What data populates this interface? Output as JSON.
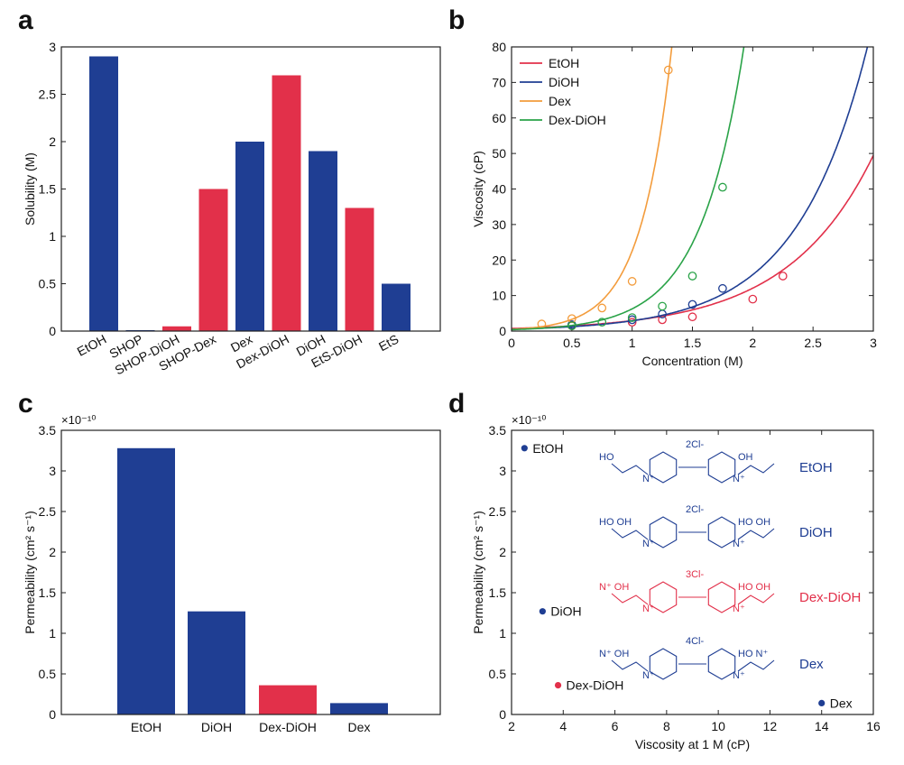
{
  "colors": {
    "blue": "#1f3e93",
    "red": "#e2304a",
    "orange": "#f39c3c",
    "green": "#2aa348",
    "axis": "#222222"
  },
  "panels": {
    "a": {
      "letter": "a"
    },
    "b": {
      "letter": "b"
    },
    "c": {
      "letter": "c"
    },
    "d": {
      "letter": "d"
    }
  },
  "chart_data": [
    {
      "id": "a",
      "type": "bar",
      "title": "",
      "xlabel": "",
      "ylabel": "Solubility (M)",
      "ylim": [
        0,
        3
      ],
      "yticks": [
        0,
        0.5,
        1,
        1.5,
        2,
        2.5,
        3
      ],
      "ytick_labels": [
        "0",
        "0.5",
        "1",
        "1.5",
        "2",
        "2.5",
        "3"
      ],
      "categories": [
        "EtOH",
        "SHOP",
        "SHOP-DiOH",
        "SHOP-Dex",
        "Dex",
        "Dex-DiOH",
        "DiOH",
        "EtS-DiOH",
        "EtS"
      ],
      "values": [
        2.9,
        0.01,
        0.05,
        1.5,
        2.0,
        2.7,
        1.9,
        1.3,
        0.5
      ],
      "bar_colors": [
        "blue",
        "blue",
        "red",
        "red",
        "blue",
        "red",
        "blue",
        "red",
        "blue"
      ]
    },
    {
      "id": "b",
      "type": "line",
      "xlabel": "Concentration (M)",
      "ylabel": "Viscosity (cP)",
      "xlim": [
        0,
        3
      ],
      "ylim": [
        0,
        80
      ],
      "xticks": [
        0,
        0.5,
        1,
        1.5,
        2,
        2.5,
        3
      ],
      "xtick_labels": [
        "0",
        "0.5",
        "1",
        "1.5",
        "2",
        "2.5",
        "3"
      ],
      "yticks": [
        0,
        10,
        20,
        30,
        40,
        50,
        60,
        70,
        80
      ],
      "ytick_labels": [
        "0",
        "10",
        "20",
        "30",
        "40",
        "50",
        "60",
        "70",
        "80"
      ],
      "legend_position": "top-left",
      "series": [
        {
          "name": "EtOH",
          "color": "red",
          "points": [
            [
              0.5,
              1.5
            ],
            [
              1.0,
              2.5
            ],
            [
              1.25,
              3.2
            ],
            [
              1.5,
              4.0
            ],
            [
              2.0,
              9.0
            ],
            [
              2.25,
              15.5
            ]
          ],
          "curve": {
            "a": 0.72,
            "k": 1.41
          }
        },
        {
          "name": "DiOH",
          "color": "blue",
          "points": [
            [
              0.5,
              1.8
            ],
            [
              1.0,
              3.2
            ],
            [
              1.25,
              4.8
            ],
            [
              1.5,
              7.5
            ],
            [
              1.75,
              12.0
            ]
          ],
          "curve": {
            "a": 0.53,
            "k": 1.7
          }
        },
        {
          "name": "Dex",
          "color": "orange",
          "points": [
            [
              0.25,
              2.0
            ],
            [
              0.5,
              3.5
            ],
            [
              0.75,
              6.5
            ],
            [
              1.0,
              14.0
            ],
            [
              1.3,
              73.5
            ]
          ],
          "curve": {
            "a": 0.48,
            "k": 3.85
          }
        },
        {
          "name": "Dex-DiOH",
          "color": "green",
          "points": [
            [
              0.5,
              1.5
            ],
            [
              0.75,
              2.5
            ],
            [
              1.0,
              3.8
            ],
            [
              1.25,
              7.0
            ],
            [
              1.5,
              15.5
            ],
            [
              1.75,
              40.5
            ]
          ],
          "curve": {
            "a": 0.4,
            "k": 2.75
          }
        }
      ]
    },
    {
      "id": "c",
      "type": "bar",
      "xlabel": "",
      "ylabel": "Permeability  (cm² s⁻¹)",
      "exponent": "×10⁻¹⁰",
      "ylim": [
        0,
        3.5
      ],
      "yticks": [
        0,
        0.5,
        1,
        1.5,
        2,
        2.5,
        3,
        3.5
      ],
      "ytick_labels": [
        "0",
        "0.5",
        "1",
        "1.5",
        "2",
        "2.5",
        "3",
        "3.5"
      ],
      "categories": [
        "EtOH",
        "DiOH",
        "Dex-DiOH",
        "Dex"
      ],
      "values": [
        3.28,
        1.27,
        0.36,
        0.14
      ],
      "bar_colors": [
        "blue",
        "blue",
        "red",
        "blue"
      ]
    },
    {
      "id": "d",
      "type": "scatter",
      "xlabel": "Viscosity at 1 M (cP)",
      "ylabel": "Permeability (cm² s⁻¹)",
      "exponent": "×10⁻¹⁰",
      "xlim": [
        2,
        16
      ],
      "ylim": [
        0,
        3.5
      ],
      "xticks": [
        2,
        4,
        6,
        8,
        10,
        12,
        14,
        16
      ],
      "xtick_labels": [
        "2",
        "4",
        "6",
        "8",
        "10",
        "12",
        "14",
        "16"
      ],
      "yticks": [
        0,
        0.5,
        1,
        1.5,
        2,
        2.5,
        3,
        3.5
      ],
      "ytick_labels": [
        "0",
        "0.5",
        "1",
        "1.5",
        "2",
        "2.5",
        "3",
        "3.5"
      ],
      "points": [
        {
          "label": "EtOH",
          "x": 2.5,
          "y": 3.28,
          "color": "blue"
        },
        {
          "label": "DiOH",
          "x": 3.2,
          "y": 1.27,
          "color": "blue"
        },
        {
          "label": "Dex-DiOH",
          "x": 3.8,
          "y": 0.36,
          "color": "red"
        },
        {
          "label": "Dex",
          "x": 14.0,
          "y": 0.14,
          "color": "blue"
        }
      ]
    }
  ],
  "structures": [
    {
      "name": "EtOH",
      "counterion": "2Cl-",
      "color": "blue",
      "left_text": "HO",
      "right_text": "OH"
    },
    {
      "name": "DiOH",
      "counterion": "2Cl-",
      "color": "blue",
      "left_text": "HO   OH",
      "right_text": "HO   OH"
    },
    {
      "name": "Dex-DiOH",
      "counterion": "3Cl-",
      "color": "red",
      "left_text": "N⁺   OH",
      "right_text": "HO   OH"
    },
    {
      "name": "Dex",
      "counterion": "4Cl-",
      "color": "blue",
      "left_text": "N⁺   OH",
      "right_text": "HO   N⁺"
    }
  ],
  "structure_atoms": {
    "pyridinium_n": "N⁺"
  }
}
